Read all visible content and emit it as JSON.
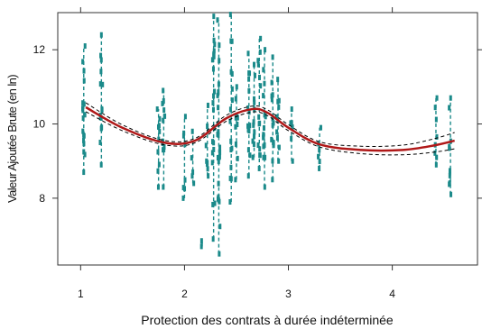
{
  "chart_data": {
    "type": "scatter",
    "title": "",
    "xlabel": "Protection des contrats à durée indéterminée",
    "ylabel": "Valeur Ajoutée Brute (en ln)",
    "xlim": [
      0.78,
      4.82
    ],
    "ylim": [
      6.2,
      13.0
    ],
    "xticks": [
      1,
      2,
      3,
      4
    ],
    "yticks": [
      8,
      10,
      12
    ],
    "grid": false,
    "colors": {
      "points": "#1b8a8a",
      "fit": "#b01818",
      "ci": "#000000",
      "axes": "#333333"
    },
    "clusters": [
      {
        "x": 1.03,
        "ymin": 8.7,
        "ymax": 12.1,
        "n": 18
      },
      {
        "x": 1.2,
        "ymin": 8.9,
        "ymax": 12.4,
        "n": 16
      },
      {
        "x": 1.75,
        "ymin": 8.3,
        "ymax": 10.4,
        "n": 10
      },
      {
        "x": 1.8,
        "ymin": 8.3,
        "ymax": 10.9,
        "n": 12
      },
      {
        "x": 2.0,
        "ymin": 8.0,
        "ymax": 10.2,
        "n": 8
      },
      {
        "x": 2.08,
        "ymin": 8.4,
        "ymax": 9.8,
        "n": 5
      },
      {
        "x": 2.17,
        "ymin": 6.7,
        "ymax": 6.85,
        "n": 2
      },
      {
        "x": 2.22,
        "ymin": 8.6,
        "ymax": 10.5,
        "n": 8
      },
      {
        "x": 2.28,
        "ymin": 6.9,
        "ymax": 12.9,
        "n": 22
      },
      {
        "x": 2.33,
        "ymin": 6.5,
        "ymax": 12.8,
        "n": 24
      },
      {
        "x": 2.45,
        "ymin": 7.9,
        "ymax": 12.95,
        "n": 16
      },
      {
        "x": 2.5,
        "ymin": 8.5,
        "ymax": 11.0,
        "n": 10
      },
      {
        "x": 2.62,
        "ymin": 8.6,
        "ymax": 11.9,
        "n": 14
      },
      {
        "x": 2.67,
        "ymin": 9.1,
        "ymax": 11.6,
        "n": 12
      },
      {
        "x": 2.72,
        "ymin": 8.8,
        "ymax": 12.3,
        "n": 14
      },
      {
        "x": 2.77,
        "ymin": 8.3,
        "ymax": 12.0,
        "n": 16
      },
      {
        "x": 2.85,
        "ymin": 8.5,
        "ymax": 11.8,
        "n": 14
      },
      {
        "x": 2.9,
        "ymin": 9.0,
        "ymax": 11.2,
        "n": 10
      },
      {
        "x": 3.03,
        "ymin": 9.0,
        "ymax": 10.4,
        "n": 6
      },
      {
        "x": 3.3,
        "ymin": 8.8,
        "ymax": 9.9,
        "n": 6
      },
      {
        "x": 4.42,
        "ymin": 8.9,
        "ymax": 10.7,
        "n": 8
      },
      {
        "x": 4.56,
        "ymin": 8.1,
        "ymax": 10.7,
        "n": 10
      }
    ],
    "fit_curve": {
      "x": [
        1.05,
        1.4,
        1.8,
        2.1,
        2.4,
        2.65,
        2.8,
        3.0,
        3.3,
        3.7,
        4.1,
        4.4,
        4.6
      ],
      "y": [
        10.45,
        9.9,
        9.5,
        9.55,
        10.15,
        10.4,
        10.3,
        9.9,
        9.45,
        9.3,
        9.3,
        9.42,
        9.55
      ],
      "ci_halfwidth": [
        0.12,
        0.08,
        0.06,
        0.06,
        0.08,
        0.08,
        0.08,
        0.08,
        0.07,
        0.1,
        0.13,
        0.18,
        0.22
      ]
    }
  }
}
